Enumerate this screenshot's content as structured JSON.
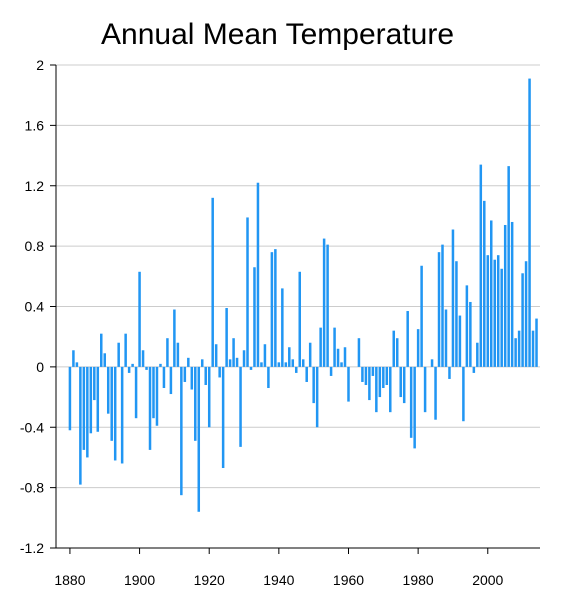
{
  "chart_data": {
    "type": "bar",
    "title": "Annual Mean Temperature",
    "xlabel": "",
    "ylabel": "",
    "ylim": [
      -1.2,
      2
    ],
    "xlim": [
      1876,
      2015
    ],
    "yticks": [
      "-1.2",
      "-0.8",
      "-0.4",
      "0",
      "0.4",
      "0.8",
      "1.2",
      "1.6",
      "2"
    ],
    "xticks": [
      "1880",
      "1900",
      "1920",
      "1940",
      "1960",
      "1980",
      "2000"
    ],
    "grid": true,
    "bar_color": "#2196f3",
    "x": [
      1880,
      1881,
      1882,
      1883,
      1884,
      1885,
      1886,
      1887,
      1888,
      1889,
      1890,
      1891,
      1892,
      1893,
      1894,
      1895,
      1896,
      1897,
      1898,
      1899,
      1900,
      1901,
      1902,
      1903,
      1904,
      1905,
      1906,
      1907,
      1908,
      1909,
      1910,
      1911,
      1912,
      1913,
      1914,
      1915,
      1916,
      1917,
      1918,
      1919,
      1920,
      1921,
      1922,
      1923,
      1924,
      1925,
      1926,
      1927,
      1928,
      1929,
      1930,
      1931,
      1932,
      1933,
      1934,
      1935,
      1936,
      1937,
      1938,
      1939,
      1940,
      1941,
      1942,
      1943,
      1944,
      1945,
      1946,
      1947,
      1948,
      1949,
      1950,
      1951,
      1952,
      1953,
      1954,
      1955,
      1956,
      1957,
      1958,
      1959,
      1960,
      1961,
      1962,
      1963,
      1964,
      1965,
      1966,
      1967,
      1968,
      1969,
      1970,
      1971,
      1972,
      1973,
      1974,
      1975,
      1976,
      1977,
      1978,
      1979,
      1980,
      1981,
      1982,
      1983,
      1984,
      1985,
      1986,
      1987,
      1988,
      1989,
      1990,
      1991,
      1992,
      1993,
      1994,
      1995,
      1996,
      1997,
      1998,
      1999,
      2000,
      2001,
      2002,
      2003,
      2004,
      2005,
      2006,
      2007,
      2008,
      2009,
      2010,
      2011,
      2012,
      2013,
      2014
    ],
    "values": [
      -0.42,
      0.11,
      0.03,
      -0.78,
      -0.55,
      -0.6,
      -0.44,
      -0.22,
      -0.43,
      0.22,
      0.09,
      -0.31,
      -0.49,
      -0.62,
      0.16,
      -0.64,
      0.22,
      -0.04,
      0.02,
      -0.34,
      0.63,
      0.11,
      -0.02,
      -0.55,
      -0.34,
      -0.39,
      0.02,
      -0.14,
      0.19,
      -0.18,
      0.38,
      0.16,
      -0.85,
      -0.1,
      0.06,
      -0.15,
      -0.49,
      -0.96,
      0.05,
      -0.12,
      -0.4,
      1.12,
      0.15,
      -0.07,
      -0.67,
      0.39,
      0.05,
      0.19,
      0.06,
      -0.53,
      0.11,
      0.99,
      -0.02,
      0.66,
      1.22,
      0.03,
      0.15,
      -0.14,
      0.76,
      0.78,
      0.03,
      0.52,
      0.03,
      0.13,
      0.05,
      -0.04,
      0.63,
      0.05,
      -0.1,
      0.16,
      -0.24,
      -0.4,
      0.26,
      0.85,
      0.81,
      -0.06,
      0.26,
      0.12,
      0.03,
      0.13,
      -0.23,
      0.0,
      0.0,
      0.19,
      -0.1,
      -0.12,
      -0.22,
      -0.06,
      -0.3,
      -0.2,
      -0.14,
      -0.12,
      -0.3,
      0.24,
      0.19,
      -0.2,
      -0.24,
      0.37,
      -0.47,
      -0.54,
      0.25,
      0.67,
      -0.3,
      0.0,
      0.05,
      -0.35,
      0.76,
      0.81,
      0.38,
      -0.08,
      0.91,
      0.7,
      0.34,
      -0.36,
      0.54,
      0.43,
      -0.04,
      0.16,
      1.34,
      1.1,
      0.74,
      0.97,
      0.71,
      0.74,
      0.65,
      0.94,
      1.33,
      0.96,
      0.19,
      0.24,
      0.62,
      0.7,
      1.91,
      0.24,
      0.32
    ]
  }
}
